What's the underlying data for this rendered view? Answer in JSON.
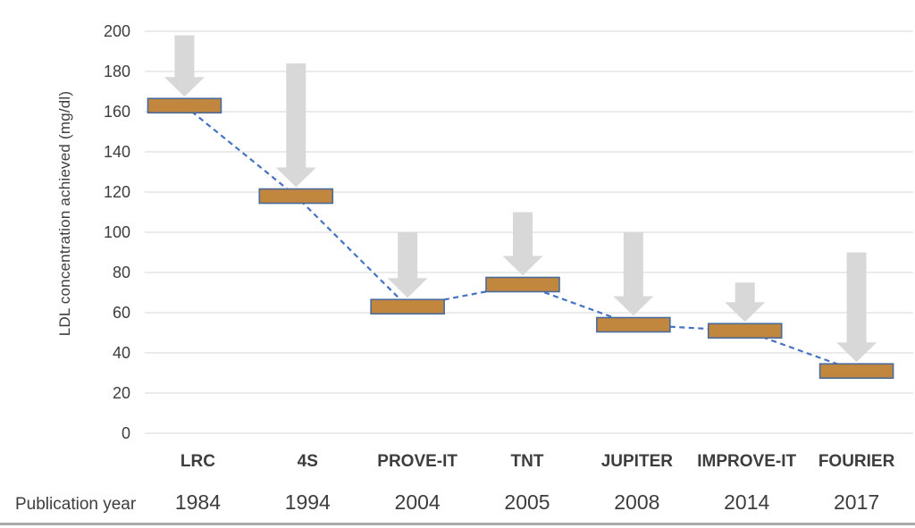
{
  "chart_data": {
    "type": "bar",
    "subtype": "floating-bars-with-decrease-arrows",
    "title": "",
    "ylabel": "LDL concentration achieved  (mg/dl)",
    "xlabel_row_header": "Publication year",
    "ylim": [
      0,
      200
    ],
    "yticks": [
      200,
      180,
      160,
      140,
      120,
      100,
      80,
      60,
      40,
      20,
      0
    ],
    "grid": "horizontal",
    "legend": "none",
    "categories": [
      "LRC",
      "4S",
      "PROVE-IT",
      "TNT",
      "JUPITER",
      "IMPROVE-IT",
      "FOURIER"
    ],
    "publication_years": [
      "1984",
      "1994",
      "2004",
      "2005",
      "2008",
      "2014",
      "2017"
    ],
    "values": [
      163,
      118,
      63,
      74,
      54,
      51,
      31
    ],
    "arrow_tops": [
      198,
      184,
      100,
      110,
      100,
      75,
      90
    ],
    "connector_style": "dashed",
    "colors": {
      "bar_fill": "#c2873f",
      "bar_border": "#4a6a9b",
      "arrow_fill": "#d8d8d8",
      "gridline": "#dfdfdf",
      "connector": "#4472c4",
      "text": "#3d3d3d",
      "bottom_rule": "#a9a9a9"
    }
  }
}
